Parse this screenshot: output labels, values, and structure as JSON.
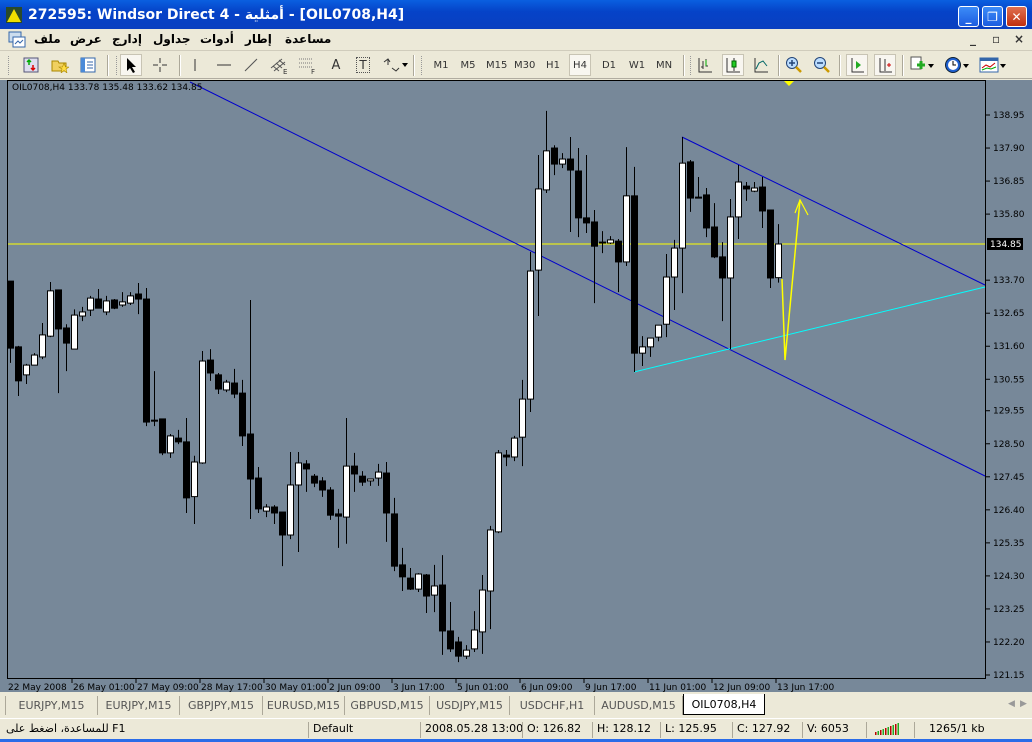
{
  "window": {
    "title": "272595: Windsor Direct 4 - أمثلية - [OIL0708,H4]",
    "buttons": [
      "minimize",
      "restore",
      "close"
    ]
  },
  "menu": {
    "items": [
      "ملف",
      "عرض",
      "إدارج",
      "جداول",
      "أدوات",
      "إطار",
      "مساعدة"
    ],
    "mdi_buttons": [
      "_",
      "▫",
      "×"
    ]
  },
  "toolbar": {
    "tools": [
      {
        "icon": "new-order-icon"
      },
      {
        "icon": "favorites-folder-icon"
      },
      {
        "icon": "navigator-icon"
      },
      {
        "icon": "cursor-arrow-icon",
        "pressed": true
      },
      {
        "icon": "crosshair-icon"
      },
      {
        "icon": "vertical-line-icon"
      },
      {
        "icon": "horizontal-line-icon"
      },
      {
        "icon": "trendline-icon"
      },
      {
        "icon": "equidistant-channel-icon",
        "label": "E"
      },
      {
        "icon": "fibonacci-icon",
        "label": "F"
      },
      {
        "icon": "text-icon",
        "label": "A"
      },
      {
        "icon": "text-label-icon",
        "label": "T"
      },
      {
        "icon": "arrows-dropdown-icon"
      }
    ],
    "timeframes": [
      "M1",
      "M5",
      "M15",
      "M30",
      "H1",
      "H4",
      "D1",
      "W1",
      "MN"
    ],
    "active_timeframe": "H4",
    "chart_tools": [
      {
        "icon": "bar-chart-icon"
      },
      {
        "icon": "candlestick-icon",
        "pressed": true
      },
      {
        "icon": "line-chart-icon"
      },
      {
        "icon": "zoom-in-icon"
      },
      {
        "icon": "zoom-out-icon"
      },
      {
        "icon": "auto-scroll-icon",
        "pressed": true
      },
      {
        "icon": "chart-shift-icon",
        "pressed": true
      },
      {
        "icon": "indicators-icon"
      },
      {
        "icon": "periods-clock-icon"
      },
      {
        "icon": "templates-icon"
      }
    ]
  },
  "chart": {
    "header": "OIL0708,H4  133.78 135.48 133.62 134.85",
    "current_price_label": "134.85",
    "colors": {
      "background": "#778899",
      "bull_body": "#FFFFFF",
      "bear_body": "#000000",
      "trendlines": "#0000CC",
      "support": "#00FFFF",
      "price_line": "#FFFF00",
      "arrow": "#FFFF00"
    }
  },
  "chart_data": {
    "type": "candlestick",
    "symbol": "OIL0708",
    "timeframe": "H4",
    "ylim": [
      121.15,
      138.95
    ],
    "y_ticks": [
      "138.95",
      "137.90",
      "136.85",
      "135.80",
      "133.70",
      "132.65",
      "131.60",
      "130.55",
      "129.55",
      "128.50",
      "127.45",
      "126.40",
      "125.35",
      "124.30",
      "123.25",
      "122.20",
      "121.15"
    ],
    "x_ticks": [
      "22 May 2008",
      "26 May 01:00",
      "27 May 09:00",
      "28 May 17:00",
      "30 May 01:00",
      "2 Jun 09:00",
      "3 Jun 17:00",
      "5 Jun 01:00",
      "6 Jun 09:00",
      "9 Jun 17:00",
      "11 Jun 01:00",
      "12 Jun 09:00",
      "13 Jun 17:00"
    ],
    "ohlc": [
      [
        133.67,
        133.67,
        131.07,
        131.54
      ],
      [
        131.58,
        131.61,
        130.02,
        130.5
      ],
      [
        130.69,
        131.04,
        130.4,
        131.0
      ],
      [
        131.0,
        131.38,
        131.0,
        131.32
      ],
      [
        131.26,
        132.34,
        131.19,
        131.96
      ],
      [
        131.92,
        133.64,
        131.89,
        133.36
      ],
      [
        133.39,
        133.39,
        130.11,
        132.15
      ],
      [
        132.18,
        132.3,
        130.81,
        131.7
      ],
      [
        131.51,
        132.77,
        131.51,
        132.59
      ],
      [
        132.56,
        132.85,
        132.4,
        132.69
      ],
      [
        132.75,
        133.2,
        132.56,
        133.13
      ],
      [
        133.1,
        133.42,
        132.81,
        132.81
      ],
      [
        132.69,
        133.2,
        132.59,
        133.04
      ],
      [
        133.07,
        133.1,
        132.78,
        132.81
      ],
      [
        132.91,
        133.32,
        132.85,
        133.01
      ],
      [
        132.97,
        133.32,
        132.91,
        133.2
      ],
      [
        133.26,
        133.61,
        132.62,
        133.1
      ],
      [
        133.1,
        133.45,
        129.06,
        129.19
      ],
      [
        129.25,
        130.81,
        129.06,
        129.25
      ],
      [
        129.29,
        129.29,
        128.14,
        128.21
      ],
      [
        128.21,
        128.81,
        128.05,
        128.75
      ],
      [
        128.68,
        128.94,
        128.49,
        128.56
      ],
      [
        128.56,
        129.32,
        126.3,
        126.78
      ],
      [
        126.82,
        128.12,
        125.95,
        127.92
      ],
      [
        127.89,
        131.45,
        127.86,
        131.13
      ],
      [
        131.16,
        131.51,
        130.5,
        130.75
      ],
      [
        130.69,
        130.75,
        130.08,
        130.24
      ],
      [
        130.21,
        130.53,
        130.14,
        130.46
      ],
      [
        130.43,
        130.88,
        129.95,
        130.08
      ],
      [
        130.11,
        130.53,
        128.43,
        128.75
      ],
      [
        128.81,
        133.07,
        126.11,
        127.38
      ],
      [
        127.41,
        127.76,
        126.3,
        126.43
      ],
      [
        126.36,
        126.58,
        126.17,
        126.49
      ],
      [
        126.49,
        126.55,
        125.95,
        126.3
      ],
      [
        126.33,
        126.33,
        124.61,
        125.6
      ],
      [
        125.6,
        128.24,
        125.47,
        127.19
      ],
      [
        127.19,
        128.24,
        125.06,
        127.89
      ],
      [
        127.86,
        127.98,
        126.97,
        127.7
      ],
      [
        127.47,
        127.54,
        127.12,
        127.25
      ],
      [
        127.32,
        127.44,
        126.81,
        127.03
      ],
      [
        127.03,
        127.12,
        126.08,
        126.23
      ],
      [
        126.27,
        126.43,
        125.19,
        126.2
      ],
      [
        126.17,
        129.32,
        125.32,
        127.79
      ],
      [
        127.79,
        128.21,
        126.97,
        127.54
      ],
      [
        127.47,
        127.63,
        127.16,
        127.28
      ],
      [
        127.32,
        127.38,
        127.16,
        127.38
      ],
      [
        127.41,
        127.86,
        127.16,
        127.6
      ],
      [
        127.57,
        127.92,
        125.38,
        126.3
      ],
      [
        126.27,
        126.78,
        124.45,
        124.61
      ],
      [
        124.65,
        125.19,
        123.82,
        124.27
      ],
      [
        124.23,
        124.55,
        123.85,
        123.88
      ],
      [
        123.88,
        124.39,
        123.79,
        124.36
      ],
      [
        124.33,
        124.36,
        123.12,
        123.66
      ],
      [
        123.69,
        124.65,
        123.15,
        123.98
      ],
      [
        124.01,
        124.96,
        121.79,
        122.55
      ],
      [
        122.55,
        123.47,
        121.88,
        121.98
      ],
      [
        122.2,
        122.36,
        121.56,
        121.75
      ],
      [
        121.75,
        122.1,
        121.66,
        121.94
      ],
      [
        121.98,
        123.18,
        121.88,
        122.58
      ],
      [
        122.52,
        124.33,
        121.82,
        123.85
      ],
      [
        123.82,
        125.89,
        122.61,
        125.76
      ],
      [
        125.7,
        128.3,
        125.66,
        128.21
      ],
      [
        128.14,
        128.3,
        127.79,
        128.08
      ],
      [
        128.08,
        128.75,
        127.95,
        128.68
      ],
      [
        128.71,
        130.53,
        127.79,
        129.92
      ],
      [
        129.92,
        134.6,
        129.51,
        133.99
      ],
      [
        134.02,
        137.68,
        132.56,
        136.6
      ],
      [
        136.57,
        139.08,
        136.47,
        137.81
      ],
      [
        137.9,
        137.99,
        137.04,
        137.39
      ],
      [
        137.39,
        137.74,
        137.26,
        137.55
      ],
      [
        137.55,
        138.25,
        135.23,
        137.2
      ],
      [
        137.17,
        137.9,
        135.07,
        135.68
      ],
      [
        135.68,
        137.68,
        135.2,
        135.52
      ],
      [
        135.55,
        135.93,
        132.97,
        134.78
      ],
      [
        134.91,
        135.26,
        134.56,
        134.91
      ],
      [
        134.88,
        135.1,
        134.85,
        134.98
      ],
      [
        134.94,
        135.01,
        133.32,
        134.28
      ],
      [
        134.28,
        137.93,
        134.15,
        136.38
      ],
      [
        136.38,
        137.3,
        130.78,
        131.38
      ],
      [
        131.38,
        131.92,
        130.97,
        131.58
      ],
      [
        131.58,
        131.86,
        131.26,
        131.86
      ],
      [
        131.89,
        132.27,
        131.76,
        132.27
      ],
      [
        132.3,
        134.53,
        131.89,
        133.8
      ],
      [
        133.8,
        134.98,
        132.75,
        134.72
      ],
      [
        134.72,
        138.25,
        133.29,
        137.42
      ],
      [
        137.46,
        137.52,
        135.87,
        136.31
      ],
      [
        136.34,
        136.98,
        136.34,
        136.34
      ],
      [
        136.41,
        136.63,
        135.07,
        135.36
      ],
      [
        135.39,
        136.15,
        134.4,
        134.44
      ],
      [
        134.44,
        134.91,
        132.4,
        133.77
      ],
      [
        133.77,
        136.28,
        131.51,
        135.71
      ],
      [
        135.71,
        137.36,
        135.01,
        136.82
      ],
      [
        136.69,
        136.82,
        136.22,
        136.6
      ],
      [
        136.53,
        136.82,
        136.5,
        136.63
      ],
      [
        136.66,
        136.98,
        135.36,
        135.9
      ],
      [
        135.93,
        135.93,
        133.45,
        133.77
      ],
      [
        133.78,
        135.48,
        133.62,
        134.85
      ]
    ],
    "price_line": 134.85,
    "grid": false
  },
  "tabs": {
    "items": [
      "EURJPY,M15",
      "EURJPY,M15",
      "GBPJPY,M15",
      "EURUSD,M15",
      "GBPUSD,M15",
      "USDJPY,M15",
      "USDCHF,H1",
      "AUDUSD,M15",
      "OIL0708,H4"
    ],
    "active": "OIL0708,H4"
  },
  "status": {
    "help": "للمساعدة، اضغط على F1",
    "profile": "Default",
    "datetime": "2008.05.28 13:00",
    "open": "O: 126.82",
    "high": "H: 128.12",
    "low": "L: 125.95",
    "close": "C: 127.92",
    "volume": "V: 6053",
    "traffic": "1265/1 kb"
  }
}
